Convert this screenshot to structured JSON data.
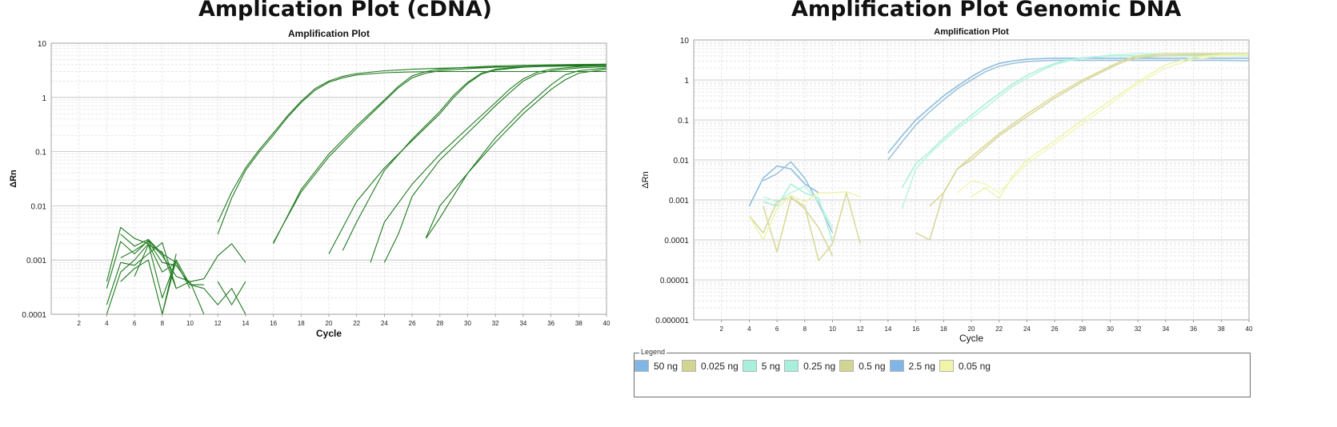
{
  "headings": {
    "left": "Amplication Plot (cDNA)",
    "right": "Amplification Plot Genomic DNA"
  },
  "legend": {
    "caption": "Legend",
    "items": [
      {
        "label": "50 ng",
        "color": "#7fb6e6"
      },
      {
        "label": "0.025 ng",
        "color": "#d2d591"
      },
      {
        "label": "5 ng",
        "color": "#a6f0dc"
      },
      {
        "label": "0.25 ng",
        "color": "#a6f0dc"
      },
      {
        "label": "0.5 ng",
        "color": "#d2d591"
      },
      {
        "label": "2.5 ng",
        "color": "#7fb6e6"
      },
      {
        "label": "0.05 ng",
        "color": "#f1f5a8"
      }
    ]
  },
  "chart_data": [
    {
      "type": "line",
      "title": "Amplification Plot",
      "xlabel": "Cycle",
      "ylabel": "ΔRn",
      "xlim": [
        0,
        40
      ],
      "ylim": [
        0.0001,
        10
      ],
      "yscale": "log",
      "xticks": [
        "2",
        "4",
        "6",
        "8",
        "10",
        "12",
        "14",
        "16",
        "18",
        "20",
        "22",
        "24",
        "26",
        "28",
        "30",
        "32",
        "34",
        "36",
        "38",
        "40"
      ],
      "yticks": [
        {
          "v": 0.0001,
          "label": "0.0001"
        },
        {
          "v": 0.001,
          "label": "0.001"
        },
        {
          "v": 0.01,
          "label": "0.01"
        },
        {
          "v": 0.1,
          "label": "0.1"
        },
        {
          "v": 1,
          "label": "1"
        },
        {
          "v": 10,
          "label": "10"
        }
      ],
      "grid": true,
      "line_color": "#1f7a1f",
      "series": [
        {
          "x": [
            12,
            13,
            14,
            15,
            16,
            17,
            18,
            19,
            20,
            21,
            22,
            24,
            26,
            28,
            30,
            32,
            34,
            36,
            38,
            40
          ],
          "y": [
            0.005,
            0.018,
            0.05,
            0.11,
            0.22,
            0.45,
            0.85,
            1.45,
            2.0,
            2.45,
            2.75,
            3.1,
            3.3,
            3.45,
            3.55,
            3.65,
            3.7,
            3.75,
            3.8,
            3.85
          ]
        },
        {
          "x": [
            12,
            13,
            14,
            15,
            16,
            17,
            18,
            19,
            20,
            21,
            22,
            24,
            26,
            28,
            30,
            32,
            34,
            36,
            38,
            40
          ],
          "y": [
            0.003,
            0.014,
            0.045,
            0.1,
            0.2,
            0.42,
            0.8,
            1.35,
            1.9,
            2.3,
            2.6,
            2.85,
            2.95,
            3.0,
            3.0,
            3.0,
            3.0,
            3.0,
            3.0,
            3.0
          ]
        },
        {
          "x": [
            16,
            18,
            20,
            22,
            24,
            25,
            26,
            27,
            28,
            30,
            32,
            34,
            36,
            38,
            40
          ],
          "y": [
            0.002,
            0.02,
            0.09,
            0.3,
            0.9,
            1.6,
            2.5,
            3.0,
            3.3,
            3.6,
            3.8,
            3.9,
            4.0,
            4.05,
            4.1
          ]
        },
        {
          "x": [
            16,
            18,
            20,
            22,
            24,
            25,
            26,
            27,
            28,
            30,
            32,
            34,
            36,
            38,
            40
          ],
          "y": [
            0.0021,
            0.018,
            0.08,
            0.27,
            0.85,
            1.5,
            2.3,
            2.8,
            3.1,
            3.4,
            3.6,
            3.7,
            3.8,
            3.85,
            3.9
          ]
        },
        {
          "x": [
            20,
            22,
            24,
            26,
            28,
            29,
            30,
            31,
            32,
            34,
            36,
            38,
            40
          ],
          "y": [
            0.0013,
            0.012,
            0.05,
            0.16,
            0.5,
            1.0,
            1.8,
            2.7,
            3.2,
            3.6,
            3.8,
            3.9,
            4.0
          ]
        },
        {
          "x": [
            21,
            22,
            24,
            26,
            28,
            29,
            30,
            31,
            32,
            34,
            36,
            38,
            40
          ],
          "y": [
            0.0015,
            0.005,
            0.045,
            0.17,
            0.55,
            1.1,
            1.9,
            2.8,
            3.3,
            3.7,
            3.9,
            4.0,
            4.1
          ]
        },
        {
          "x": [
            23,
            24,
            26,
            28,
            30,
            32,
            33,
            34,
            35,
            36,
            38,
            40
          ],
          "y": [
            0.0009,
            0.005,
            0.025,
            0.09,
            0.27,
            0.8,
            1.4,
            2.2,
            2.9,
            3.3,
            3.7,
            3.9
          ]
        },
        {
          "x": [
            24,
            25,
            26,
            28,
            30,
            32,
            33,
            34,
            35,
            36,
            38,
            40
          ],
          "y": [
            0.0009,
            0.003,
            0.015,
            0.07,
            0.22,
            0.7,
            1.2,
            2.0,
            2.7,
            3.1,
            3.5,
            3.7
          ]
        },
        {
          "x": [
            27,
            28,
            30,
            32,
            34,
            36,
            37,
            38,
            40
          ],
          "y": [
            0.0025,
            0.006,
            0.04,
            0.18,
            0.6,
            1.7,
            2.6,
            3.1,
            3.5
          ]
        },
        {
          "x": [
            27,
            28,
            29,
            30,
            32,
            34,
            36,
            37,
            38,
            40
          ],
          "y": [
            0.0026,
            0.01,
            0.02,
            0.04,
            0.15,
            0.5,
            1.4,
            2.1,
            2.8,
            3.3
          ]
        },
        {
          "x": [
            4,
            5,
            6,
            7,
            8,
            9
          ],
          "y": [
            0.0004,
            0.004,
            0.0025,
            0.002,
            0.0002,
            0.001
          ]
        },
        {
          "x": [
            4,
            5,
            6,
            7,
            8,
            9,
            10,
            11,
            12,
            13,
            14
          ],
          "y": [
            0.0003,
            0.0022,
            0.0013,
            0.0023,
            0.0012,
            0.0005,
            0.0004,
            0.00045,
            0.0012,
            0.002,
            0.0009
          ]
        },
        {
          "x": [
            4,
            5,
            6,
            7,
            8,
            9
          ],
          "y": [
            0.00015,
            0.0009,
            0.0008,
            0.0013,
            0.0021,
            0.0003
          ]
        },
        {
          "x": [
            5,
            6,
            7,
            8,
            9,
            10,
            11
          ],
          "y": [
            0.0011,
            0.0015,
            0.0022,
            0.0009,
            0.0008,
            0.00035,
            0.00035
          ]
        },
        {
          "x": [
            4,
            5,
            6,
            7,
            8,
            9
          ],
          "y": [
            0.0001,
            0.0006,
            0.001,
            0.002,
            0.0006,
            0.0009
          ]
        },
        {
          "x": [
            5,
            6,
            7,
            8,
            9,
            10
          ],
          "y": [
            0.003,
            0.0018,
            0.0024,
            0.0013,
            0.0009,
            0.0003
          ]
        },
        {
          "x": [
            6,
            7,
            8,
            9,
            10,
            11
          ],
          "y": [
            0.0005,
            0.0019,
            0.0014,
            0.0003,
            0.0004,
            0.0001
          ]
        },
        {
          "x": [
            5,
            6,
            7,
            8,
            9
          ],
          "y": [
            0.0004,
            0.0007,
            0.001,
            0.0001,
            0.0013
          ]
        },
        {
          "x": [
            12,
            13,
            14
          ],
          "y": [
            0.0004,
            0.00015,
            0.0004
          ]
        },
        {
          "x": [
            8,
            9,
            10,
            11,
            12,
            13,
            14
          ],
          "y": [
            0.0001,
            0.001,
            0.00035,
            0.0003,
            0.00015,
            0.0003,
            0.0001
          ]
        }
      ]
    },
    {
      "type": "line",
      "title": "Amplification Plot",
      "xlabel": "Cycle",
      "ylabel": "ΔRn",
      "xlim": [
        0,
        40
      ],
      "ylim": [
        1e-06,
        10
      ],
      "yscale": "log",
      "xticks": [
        "2",
        "4",
        "6",
        "8",
        "10",
        "12",
        "14",
        "16",
        "18",
        "20",
        "22",
        "24",
        "26",
        "28",
        "30",
        "32",
        "34",
        "36",
        "38",
        "40"
      ],
      "yticks": [
        {
          "v": 1e-06,
          "label": "0.000001"
        },
        {
          "v": 1e-05,
          "label": "0.00001"
        },
        {
          "v": 0.0001,
          "label": "0.0001"
        },
        {
          "v": 0.001,
          "label": "0.001"
        },
        {
          "v": 0.01,
          "label": "0.01"
        },
        {
          "v": 0.1,
          "label": "0.1"
        },
        {
          "v": 1,
          "label": "1"
        },
        {
          "v": 10,
          "label": "10"
        }
      ],
      "grid": true,
      "series": [
        {
          "name": "50 ng",
          "color": "#86b9dc",
          "x": [
            14,
            15,
            16,
            17,
            18,
            19,
            20,
            21,
            22,
            23,
            24,
            26,
            28,
            30,
            32,
            34,
            36,
            38,
            40
          ],
          "y": [
            0.015,
            0.04,
            0.1,
            0.2,
            0.4,
            0.7,
            1.2,
            1.9,
            2.6,
            3.0,
            3.3,
            3.5,
            3.5,
            3.5,
            3.5,
            3.5,
            3.5,
            3.5,
            3.5
          ]
        },
        {
          "name": "2.5 ng",
          "color": "#9ac0d8",
          "x": [
            14,
            15,
            16,
            17,
            18,
            19,
            20,
            21,
            22,
            23,
            24,
            26,
            28,
            30,
            32,
            34,
            36,
            38,
            40
          ],
          "y": [
            0.01,
            0.028,
            0.075,
            0.16,
            0.32,
            0.6,
            1.0,
            1.6,
            2.2,
            2.6,
            2.9,
            3.1,
            3.1,
            3.1,
            3.1,
            3.1,
            3.1,
            3.1,
            3.0
          ]
        },
        {
          "name": "5 ng",
          "color": "#a8efd8",
          "x": [
            15,
            16,
            17,
            18,
            19,
            20,
            21,
            22,
            23,
            24,
            25,
            26,
            27,
            28,
            30,
            32,
            34,
            36,
            38,
            40
          ],
          "y": [
            0.002,
            0.008,
            0.016,
            0.035,
            0.07,
            0.13,
            0.25,
            0.45,
            0.8,
            1.3,
            1.9,
            2.6,
            3.2,
            3.6,
            4.0,
            4.0,
            4.0,
            4.0,
            4.0,
            4.0
          ]
        },
        {
          "name": "0.25 ng",
          "color": "#b9f3e4",
          "x": [
            15,
            16,
            17,
            18,
            19,
            20,
            21,
            22,
            23,
            24,
            25,
            26,
            27,
            28,
            30,
            32,
            34,
            36,
            38,
            40
          ],
          "y": [
            0.0006,
            0.006,
            0.014,
            0.03,
            0.06,
            0.11,
            0.2,
            0.38,
            0.7,
            1.1,
            1.7,
            2.4,
            3.0,
            3.5,
            4.2,
            4.5,
            4.5,
            4.5,
            4.5,
            4.5
          ]
        },
        {
          "name": "0.5 ng",
          "color": "#d8d897",
          "x": [
            17,
            18,
            19,
            20,
            22,
            24,
            26,
            28,
            30,
            31,
            32,
            34,
            36,
            38,
            40
          ],
          "y": [
            0.0007,
            0.0015,
            0.006,
            0.012,
            0.045,
            0.14,
            0.4,
            1.0,
            2.2,
            3.2,
            4.0,
            4.5,
            4.6,
            4.6,
            4.6
          ]
        },
        {
          "name": "0.025 ng",
          "color": "#d6d69a",
          "x": [
            16,
            17,
            18,
            19,
            20,
            22,
            24,
            26,
            28,
            30,
            31,
            32,
            34,
            36,
            38,
            40
          ],
          "y": [
            0.00015,
            0.0001,
            0.0015,
            0.006,
            0.01,
            0.04,
            0.12,
            0.35,
            0.9,
            2.0,
            2.9,
            3.6,
            4.1,
            4.2,
            4.2,
            4.2
          ]
        },
        {
          "name": "0.05 ng",
          "color": "#eef3ad",
          "x": [
            20,
            21,
            22,
            23,
            24,
            26,
            28,
            30,
            32,
            34,
            36,
            38,
            40
          ],
          "y": [
            0.0012,
            0.002,
            0.0011,
            0.004,
            0.01,
            0.03,
            0.1,
            0.3,
            0.9,
            2.4,
            3.7,
            4.3,
            4.4
          ]
        },
        {
          "name": "0.05 ng",
          "color": "#f2f5bd",
          "x": [
            19,
            20,
            21,
            22,
            24,
            26,
            28,
            30,
            32,
            34,
            36,
            38,
            40
          ],
          "y": [
            0.0015,
            0.003,
            0.0025,
            0.0015,
            0.008,
            0.025,
            0.08,
            0.25,
            0.8,
            2.0,
            3.3,
            4.0,
            4.2
          ]
        },
        {
          "name": "50 ng",
          "color": "#86b9dc",
          "x": [
            4,
            5,
            6,
            7,
            8,
            9
          ],
          "y": [
            0.0007,
            0.0035,
            0.007,
            0.006,
            0.0025,
            0.0015
          ]
        },
        {
          "name": "2.5 ng",
          "color": "#9ac0d8",
          "x": [
            5,
            6,
            7,
            8,
            9,
            10
          ],
          "y": [
            0.003,
            0.0045,
            0.009,
            0.0035,
            0.0008,
            0.00015
          ]
        },
        {
          "name": "5 ng",
          "color": "#a8efd8",
          "x": [
            5,
            6,
            7,
            8,
            9,
            10
          ],
          "y": [
            0.0009,
            0.0007,
            0.0025,
            0.0015,
            0.0011,
            9e-05
          ]
        },
        {
          "name": "0.25 ng",
          "color": "#b9f3e4",
          "x": [
            5,
            6,
            7,
            8,
            9,
            10
          ],
          "y": [
            0.0012,
            0.0009,
            0.0015,
            0.0022,
            0.0009,
            0.0002
          ]
        },
        {
          "name": "0.5 ng",
          "color": "#d8d897",
          "x": [
            5,
            6,
            7,
            8,
            9,
            10,
            11,
            12
          ],
          "y": [
            0.0007,
            5e-05,
            0.0011,
            0.0007,
            3e-05,
            8e-05,
            0.0015,
            8e-05
          ]
        },
        {
          "name": "0.025 ng",
          "color": "#d6d69a",
          "x": [
            4,
            5,
            6,
            7,
            8,
            9,
            10
          ],
          "y": [
            0.0004,
            0.00015,
            0.0009,
            0.0012,
            0.0006,
            0.0002,
            4e-05
          ]
        },
        {
          "name": "0.05 ng",
          "color": "#eef3ad",
          "x": [
            4,
            5,
            6,
            7,
            8,
            9,
            10,
            11,
            12
          ],
          "y": [
            0.0004,
            0.0001,
            0.0006,
            0.0013,
            0.0009,
            0.0015,
            0.0015,
            0.0016,
            0.0012
          ]
        }
      ]
    }
  ]
}
